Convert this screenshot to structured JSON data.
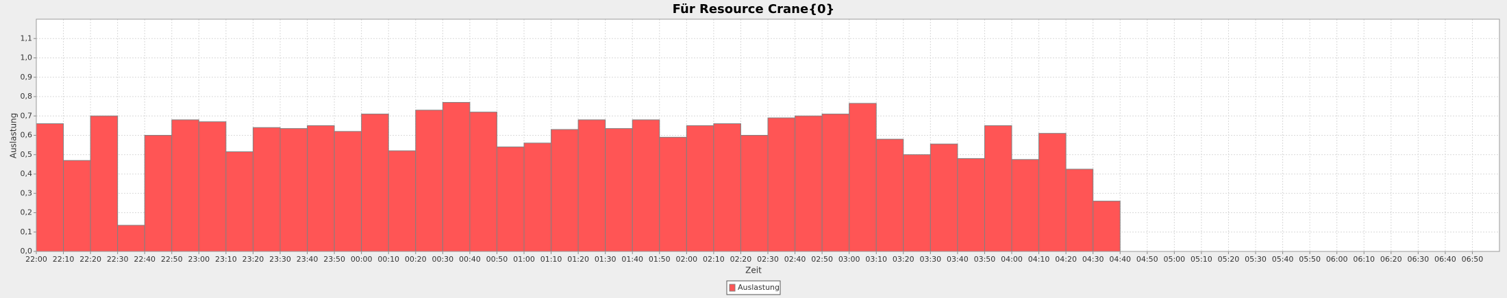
{
  "chart_data": {
    "type": "bar",
    "title": "Für Resource Crane{0}",
    "x_label": "Zeit",
    "y_label": "Auslastung",
    "categories": [
      "22:00",
      "22:10",
      "22:20",
      "22:30",
      "22:40",
      "22:50",
      "23:00",
      "23:10",
      "23:20",
      "23:30",
      "23:40",
      "23:50",
      "00:00",
      "00:10",
      "00:20",
      "00:30",
      "00:40",
      "00:50",
      "01:00",
      "01:10",
      "01:20",
      "01:30",
      "01:40",
      "01:50",
      "02:00",
      "02:10",
      "02:20",
      "02:30",
      "02:40",
      "02:50",
      "03:00",
      "03:10",
      "03:20",
      "03:30",
      "03:40",
      "03:50",
      "04:00",
      "04:10",
      "04:20",
      "04:30",
      "04:40",
      "04:50",
      "05:00",
      "05:10",
      "05:20",
      "05:30",
      "05:40",
      "05:50",
      "06:00",
      "06:10",
      "06:20",
      "06:30",
      "06:40",
      "06:50"
    ],
    "series": [
      {
        "name": "Auslastung",
        "color": "#ff5555",
        "values": [
          0.66,
          0.47,
          0.7,
          0.135,
          0.6,
          0.68,
          0.67,
          0.515,
          0.64,
          0.635,
          0.65,
          0.62,
          0.71,
          0.52,
          0.73,
          0.77,
          0.72,
          0.54,
          0.56,
          0.63,
          0.68,
          0.635,
          0.68,
          0.59,
          0.65,
          0.66,
          0.6,
          0.69,
          0.7,
          0.71,
          0.765,
          0.58,
          0.5,
          0.555,
          0.48,
          0.65,
          0.475,
          0.61,
          0.425,
          0.26,
          null,
          null,
          null,
          null,
          null,
          null,
          null,
          null,
          null,
          null,
          null,
          null,
          null,
          null
        ]
      }
    ],
    "ylim": [
      0,
      1.2
    ],
    "yticks": [
      {
        "value": 0,
        "label": "0,0"
      },
      {
        "value": 0.1,
        "label": "0,1"
      },
      {
        "value": 0.2,
        "label": "0,2"
      },
      {
        "value": 0.3,
        "label": "0,3"
      },
      {
        "value": 0.4,
        "label": "0,4"
      },
      {
        "value": 0.5,
        "label": "0,5"
      },
      {
        "value": 0.6,
        "label": "0,6"
      },
      {
        "value": 0.7,
        "label": "0,7"
      },
      {
        "value": 0.8,
        "label": "0,8"
      },
      {
        "value": 0.9,
        "label": "0,9"
      },
      {
        "value": 1.0,
        "label": "1,0"
      },
      {
        "value": 1.1,
        "label": "1,1"
      }
    ],
    "grid": true
  }
}
